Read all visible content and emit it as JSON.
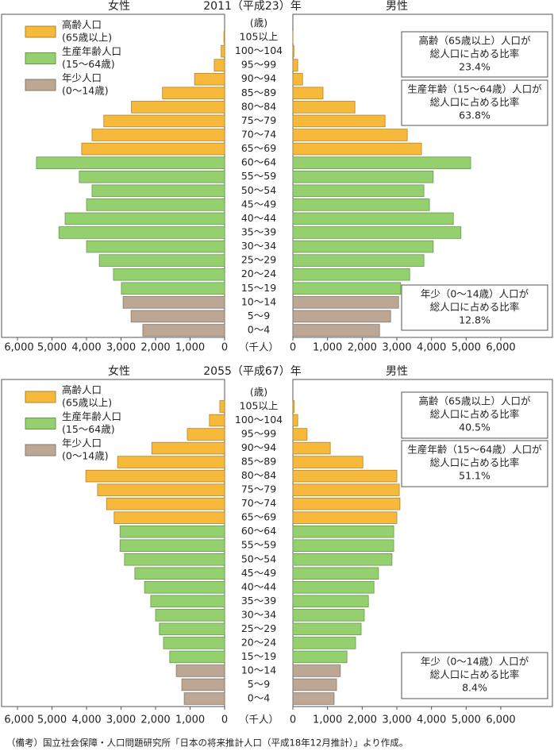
{
  "chart_data": [
    {
      "type": "pyramid",
      "title": "2011（平成23）年",
      "female_label": "女性",
      "male_label": "男性",
      "age_unit": "(歳)",
      "x_unit": "（千人）",
      "categories": [
        "105以上",
        "100～104",
        "95～99",
        "90～94",
        "85～89",
        "80～84",
        "75～79",
        "70～74",
        "65～69",
        "60～64",
        "55～59",
        "50～54",
        "45～49",
        "40～44",
        "35～39",
        "30～34",
        "25～29",
        "20～24",
        "15～19",
        "10～14",
        "5～9",
        "0～4"
      ],
      "xlim": [
        0,
        6000
      ],
      "xticks": [
        {
          "value": 6000,
          "label": "6,000"
        },
        {
          "value": 5000,
          "label": "5,000"
        },
        {
          "value": 4000,
          "label": "4,000"
        },
        {
          "value": 3000,
          "label": "3,000"
        },
        {
          "value": 2000,
          "label": "2,000"
        },
        {
          "value": 1000,
          "label": "1,000"
        },
        0
      ],
      "series": [
        {
          "name": "高齢人口",
          "note": "(65歳以上)",
          "color": "#f6b93b",
          "female": [
            20,
            100,
            300,
            870,
            1800,
            2700,
            3500,
            3840,
            4140,
            null,
            null,
            null,
            null,
            null,
            null,
            null,
            null,
            null,
            null,
            null,
            null,
            null
          ],
          "male": [
            5,
            30,
            140,
            280,
            870,
            1790,
            2660,
            3300,
            3710,
            null,
            null,
            null,
            null,
            null,
            null,
            null,
            null,
            null,
            null,
            null,
            null,
            null
          ]
        },
        {
          "name": "生産年齢人口",
          "note": "(15～64歳)",
          "color": "#95d06f",
          "female": [
            null,
            null,
            null,
            null,
            null,
            null,
            null,
            null,
            null,
            5450,
            4210,
            3840,
            4000,
            4620,
            4800,
            4000,
            3630,
            3220,
            2990,
            null,
            null,
            null
          ],
          "male": [
            null,
            null,
            null,
            null,
            null,
            null,
            null,
            null,
            null,
            5130,
            4050,
            3780,
            3940,
            4630,
            4850,
            4050,
            3780,
            3370,
            3110,
            null,
            null,
            null
          ]
        },
        {
          "name": "年少人口",
          "note": "(0～14歳)",
          "color": "#bba793",
          "female": [
            null,
            null,
            null,
            null,
            null,
            null,
            null,
            null,
            null,
            null,
            null,
            null,
            null,
            null,
            null,
            null,
            null,
            null,
            null,
            2940,
            2710,
            2370
          ],
          "male": [
            null,
            null,
            null,
            null,
            null,
            null,
            null,
            null,
            null,
            null,
            null,
            null,
            null,
            null,
            null,
            null,
            null,
            null,
            null,
            3050,
            2820,
            2500
          ]
        }
      ],
      "annotations": [
        {
          "lines": [
            "高齢（65歳以上）人口が",
            "総人口に占める比率",
            "23.4%"
          ]
        },
        {
          "lines": [
            "生産年齢（15～64歳）人口が",
            "総人口に占める比率",
            "63.8%"
          ]
        },
        {
          "lines": [
            "年少（0～14歳）人口が",
            "総人口に占める比率",
            "12.8%"
          ]
        }
      ]
    },
    {
      "type": "pyramid",
      "title": "2055（平成67）年",
      "female_label": "女性",
      "male_label": "男性",
      "age_unit": "(歳)",
      "x_unit": "（千人）",
      "categories": [
        "105以上",
        "100～104",
        "95～99",
        "90～94",
        "85～89",
        "80～84",
        "75～79",
        "70～74",
        "65～69",
        "60～64",
        "55～59",
        "50～54",
        "45～49",
        "40～44",
        "35～39",
        "30～34",
        "25～29",
        "20～24",
        "15～19",
        "10～14",
        "5～9",
        "0～4"
      ],
      "xlim": [
        0,
        6000
      ],
      "xticks": [
        {
          "value": 6000,
          "label": "6,000"
        },
        {
          "value": 5000,
          "label": "5,000"
        },
        {
          "value": 4000,
          "label": "4,000"
        },
        {
          "value": 3000,
          "label": "3,000"
        },
        {
          "value": 2000,
          "label": "2,000"
        },
        {
          "value": 1000,
          "label": "1,000"
        },
        0
      ],
      "series": [
        {
          "name": "高齢人口",
          "note": "(65歳以上)",
          "color": "#f6b93b",
          "female": [
            140,
            440,
            1080,
            2110,
            3100,
            4020,
            3680,
            3420,
            3200,
            null,
            null,
            null,
            null,
            null,
            null,
            null,
            null,
            null,
            null,
            null,
            null,
            null
          ],
          "male": [
            40,
            140,
            410,
            1080,
            2020,
            3000,
            3070,
            3090,
            3000,
            null,
            null,
            null,
            null,
            null,
            null,
            null,
            null,
            null,
            null,
            null,
            null,
            null
          ]
        },
        {
          "name": "生産年齢人口",
          "note": "(15～64歳)",
          "color": "#95d06f",
          "female": [
            null,
            null,
            null,
            null,
            null,
            null,
            null,
            null,
            null,
            3030,
            3030,
            2900,
            2600,
            2320,
            2140,
            2000,
            1890,
            1770,
            1590,
            null,
            null,
            null
          ],
          "male": [
            null,
            null,
            null,
            null,
            null,
            null,
            null,
            null,
            null,
            2910,
            2910,
            2860,
            2470,
            2340,
            2180,
            2060,
            1970,
            1810,
            1560,
            null,
            null,
            null
          ]
        },
        {
          "name": "年少人口",
          "note": "(0～14歳)",
          "color": "#bba793",
          "female": [
            null,
            null,
            null,
            null,
            null,
            null,
            null,
            null,
            null,
            null,
            null,
            null,
            null,
            null,
            null,
            null,
            null,
            null,
            null,
            1400,
            1240,
            1170
          ],
          "male": [
            null,
            null,
            null,
            null,
            null,
            null,
            null,
            null,
            null,
            null,
            null,
            null,
            null,
            null,
            null,
            null,
            null,
            null,
            null,
            1370,
            1260,
            1190
          ]
        }
      ],
      "annotations": [
        {
          "lines": [
            "高齢（65歳以上）人口が",
            "総人口に占める比率",
            "40.5%"
          ]
        },
        {
          "lines": [
            "生産年齢（15～64歳）人口が",
            "総人口に占める比率",
            "51.1%"
          ]
        },
        {
          "lines": [
            "年少（0～14歳）人口が",
            "総人口に占める比率",
            "8.4%"
          ]
        }
      ]
    }
  ],
  "footnote": "（備考）国立社会保障・人口問題研究所「日本の将来推計人口（平成18年12月推計）」より作成。"
}
